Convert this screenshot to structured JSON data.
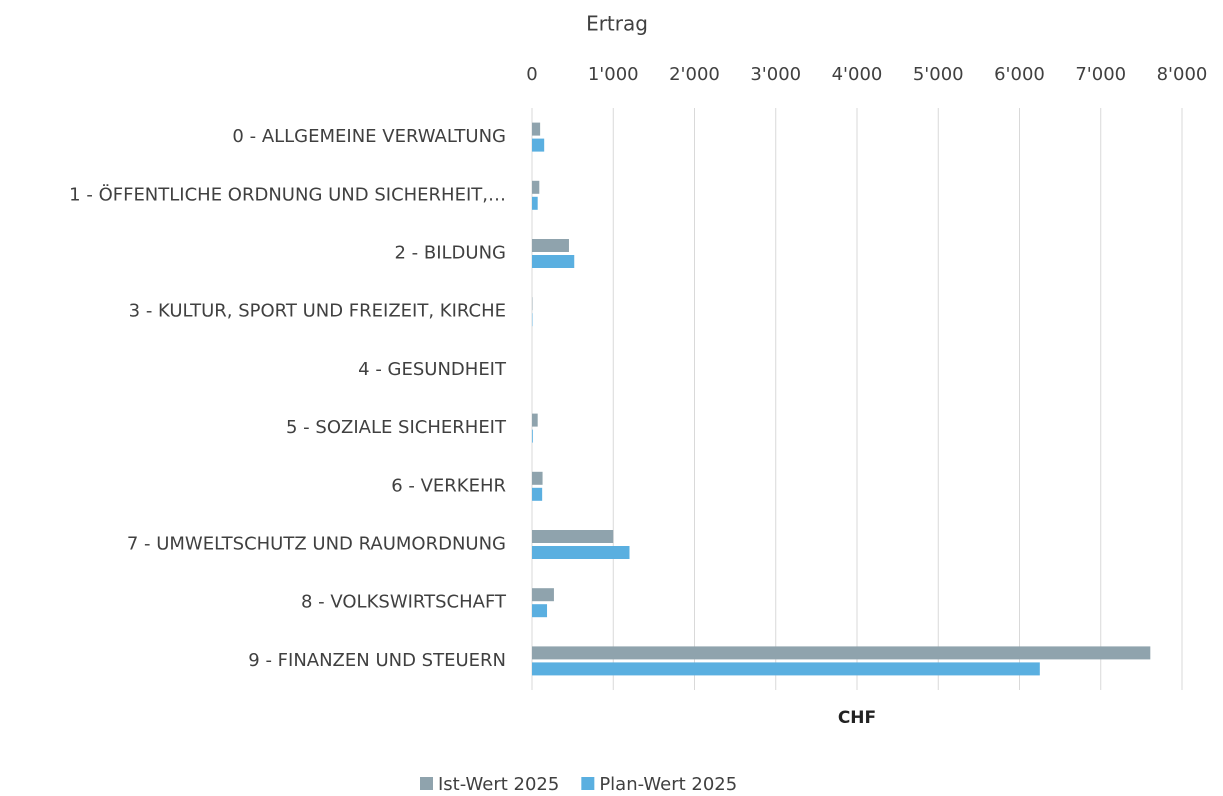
{
  "chart_data": {
    "type": "bar",
    "orientation": "horizontal",
    "title": "Ertrag",
    "xlabel": "CHF",
    "categories": [
      "0 - ALLGEMEINE VERWALTUNG",
      "1 - ÖFFENTLICHE ORDNUNG UND SICHERHEIT,…",
      "2 - BILDUNG",
      "3 - KULTUR, SPORT UND FREIZEIT, KIRCHE",
      "4 - GESUNDHEIT",
      "5 - SOZIALE SICHERHEIT",
      "6 - VERKEHR",
      "7 - UMWELTSCHUTZ UND RAUMORDNUNG",
      "8 - VOLKSWIRTSCHAFT",
      "9 - FINANZEN UND STEUERN"
    ],
    "series": [
      {
        "name": "Ist-Wert 2025",
        "color": "#8fa3ad",
        "values": [
          100,
          90,
          455,
          5,
          0,
          70,
          130,
          1000,
          270,
          7610
        ]
      },
      {
        "name": "Plan-Wert 2025",
        "color": "#5aafe0",
        "values": [
          150,
          70,
          520,
          5,
          0,
          10,
          125,
          1200,
          185,
          6250
        ]
      }
    ],
    "xlim": [
      0,
      8000
    ],
    "xticks": [
      0,
      {
        "value": 1000,
        "label": "1'000"
      },
      {
        "value": 2000,
        "label": "2'000"
      },
      {
        "value": 3000,
        "label": "3'000"
      },
      {
        "value": 4000,
        "label": "4'000"
      },
      {
        "value": 5000,
        "label": "5'000"
      },
      {
        "value": 6000,
        "label": "6'000"
      },
      {
        "value": 7000,
        "label": "7'000"
      },
      {
        "value": 8000,
        "label": "8'000"
      }
    ],
    "grid": true,
    "legend": "bottom"
  }
}
